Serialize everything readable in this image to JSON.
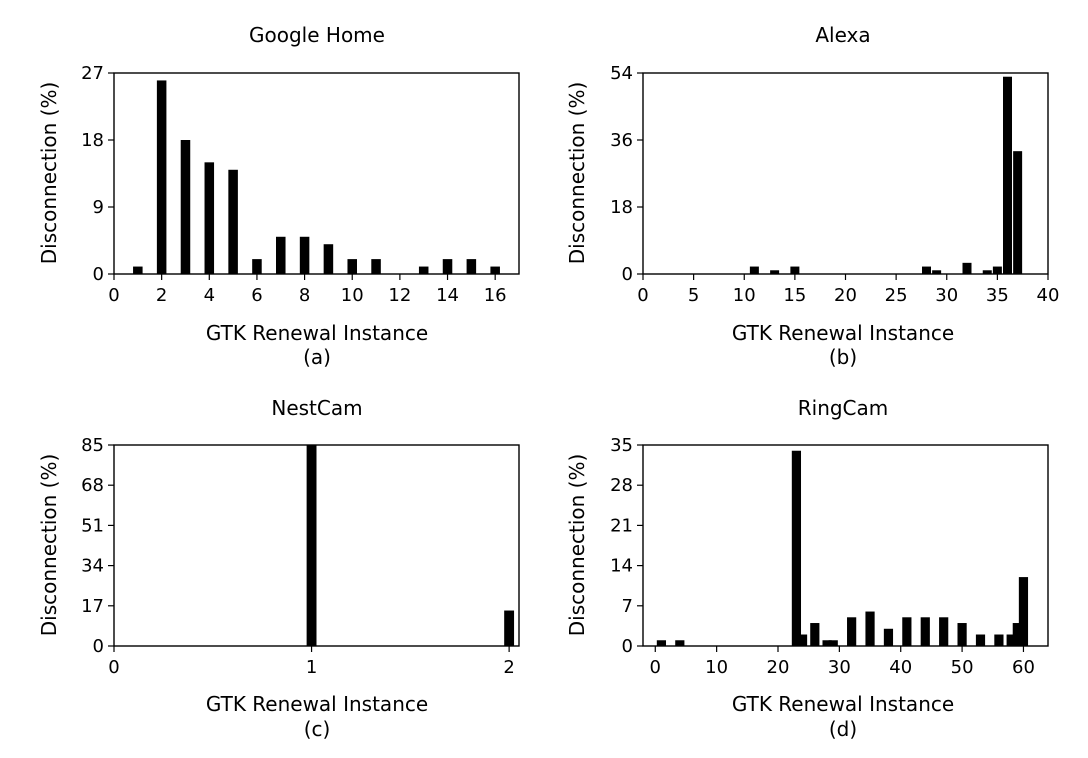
{
  "colors": {
    "bar": "#000000",
    "axes": "#000000",
    "background": "#ffffff"
  },
  "chart_data": [
    {
      "type": "bar",
      "title": "Google Home",
      "xlabel": "GTK Renewal Instance",
      "ylabel": "Disconnection (%)",
      "caption": "(a)",
      "xlim": [
        0,
        17
      ],
      "ylim": [
        0,
        27
      ],
      "xticks": [
        0,
        2,
        4,
        6,
        8,
        10,
        12,
        14,
        16
      ],
      "xticklabels": [
        "0",
        "2",
        "4",
        "6",
        "8",
        "10",
        "12",
        "14",
        "16"
      ],
      "yticks": [
        0,
        9,
        18,
        27
      ],
      "yticklabels": [
        "0",
        "9",
        "18",
        "27"
      ],
      "bar_width": 0.4,
      "x": [
        1,
        2,
        3,
        4,
        5,
        6,
        7,
        8,
        9,
        10,
        11,
        13,
        14,
        15,
        16
      ],
      "values": [
        1,
        26,
        18,
        15,
        14,
        2,
        5,
        5,
        4,
        2,
        2,
        1,
        2,
        2,
        1
      ]
    },
    {
      "type": "bar",
      "title": "Alexa",
      "xlabel": "GTK Renewal Instance",
      "ylabel": "Disconnection (%)",
      "caption": "(b)",
      "xlim": [
        0,
        40
      ],
      "ylim": [
        0,
        54
      ],
      "xticks": [
        0,
        5,
        10,
        15,
        20,
        25,
        30,
        35,
        40
      ],
      "xticklabels": [
        "0",
        "5",
        "10",
        "15",
        "20",
        "25",
        "30",
        "35",
        "40"
      ],
      "yticks": [
        0,
        18,
        36,
        54
      ],
      "yticklabels": [
        "0",
        "18",
        "36",
        "54"
      ],
      "bar_width": 0.8,
      "x": [
        11,
        13,
        15,
        28,
        29,
        32,
        34,
        35,
        36,
        37
      ],
      "values": [
        2,
        1,
        2,
        2,
        1,
        3,
        1,
        2,
        53,
        33
      ]
    },
    {
      "type": "bar",
      "title": "NestCam",
      "xlabel": "GTK Renewal Instance",
      "ylabel": "Disconnection (%)",
      "caption": "(c)",
      "xlim": [
        0,
        2.05
      ],
      "ylim": [
        0,
        85
      ],
      "xticks": [
        0,
        1,
        2
      ],
      "xticklabels": [
        "0",
        "1",
        "2"
      ],
      "yticks": [
        0,
        17,
        34,
        51,
        68,
        85
      ],
      "yticklabels": [
        "0",
        "17",
        "34",
        "51",
        "68",
        "85"
      ],
      "bar_width": 0.05,
      "x": [
        1,
        2
      ],
      "values": [
        85,
        15
      ]
    },
    {
      "type": "bar",
      "title": "RingCam",
      "xlabel": "GTK Renewal Instance",
      "ylabel": "Disconnection (%)",
      "caption": "(d)",
      "xlim": [
        -2,
        64
      ],
      "ylim": [
        0,
        35
      ],
      "xticks": [
        0,
        10,
        20,
        30,
        40,
        50,
        60
      ],
      "xticklabels": [
        "0",
        "10",
        "20",
        "30",
        "40",
        "50",
        "60"
      ],
      "yticks": [
        0,
        7,
        14,
        21,
        28,
        35
      ],
      "yticklabels": [
        "0",
        "7",
        "14",
        "21",
        "28",
        "35"
      ],
      "bar_width": 1.5,
      "x": [
        1,
        4,
        23,
        24,
        26,
        28,
        29,
        32,
        35,
        38,
        41,
        44,
        47,
        50,
        53,
        56,
        58,
        59,
        60
      ],
      "values": [
        1,
        1,
        34,
        2,
        4,
        1,
        1,
        5,
        6,
        3,
        5,
        5,
        5,
        4,
        2,
        2,
        2,
        4,
        12
      ]
    }
  ]
}
